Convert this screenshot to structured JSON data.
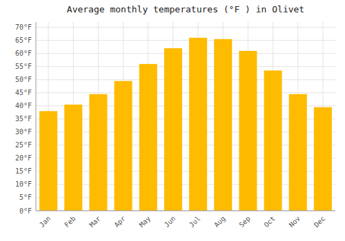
{
  "chart_data": {
    "type": "bar",
    "title": "Average monthly temperatures (°F ) in Olivet",
    "categories": [
      "Jan",
      "Feb",
      "Mar",
      "Apr",
      "May",
      "Jun",
      "Jul",
      "Aug",
      "Sep",
      "Oct",
      "Nov",
      "Dec"
    ],
    "values": [
      38,
      40.5,
      44.5,
      49.5,
      56,
      62,
      66,
      65.5,
      61,
      53.5,
      44.5,
      39.5
    ],
    "color": "#FFBB00",
    "ylim": [
      0,
      72
    ],
    "yticks": [
      {
        "value": 0,
        "label": "0°F"
      },
      {
        "value": 5,
        "label": "5°F"
      },
      {
        "value": 10,
        "label": "10°F"
      },
      {
        "value": 15,
        "label": "15°F"
      },
      {
        "value": 20,
        "label": "20°F"
      },
      {
        "value": 25,
        "label": "25°F"
      },
      {
        "value": 30,
        "label": "30°F"
      },
      {
        "value": 35,
        "label": "35°F"
      },
      {
        "value": 40,
        "label": "40°F"
      },
      {
        "value": 45,
        "label": "45°F"
      },
      {
        "value": 50,
        "label": "50°F"
      },
      {
        "value": 55,
        "label": "55°F"
      },
      {
        "value": 60,
        "label": "60°F"
      },
      {
        "value": 65,
        "label": "65°F"
      },
      {
        "value": 70,
        "label": "70°F"
      }
    ],
    "grid": true
  }
}
